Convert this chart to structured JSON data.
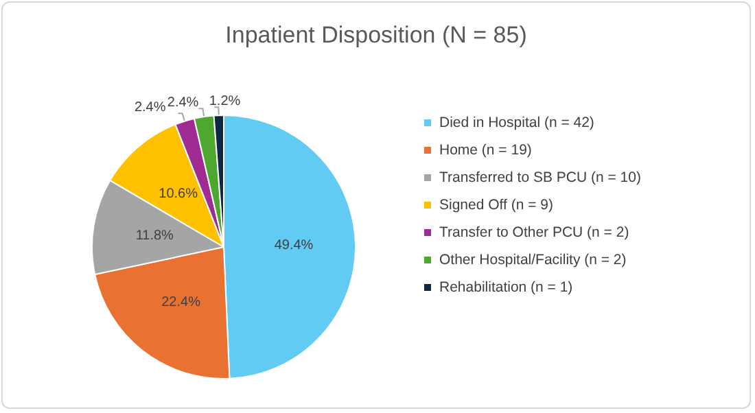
{
  "chart_data": {
    "type": "pie",
    "title": "Inpatient Disposition (N = 85)",
    "categories": [
      "Died in Hospital (n = 42)",
      "Home (n = 19)",
      "Transferred to SB PCU (n = 10)",
      "Signed Off (n = 9)",
      "Transfer to Other PCU (n = 2)",
      "Other Hospital/Facility (n = 2)",
      "Rehabilitation (n = 1)"
    ],
    "values": [
      49.4,
      22.4,
      11.8,
      10.6,
      2.4,
      2.4,
      1.2
    ],
    "value_labels": [
      "49.4%",
      "22.4%",
      "11.8%",
      "10.6%",
      "2.4%",
      "2.4%",
      "1.2%"
    ],
    "colors": [
      "#61cbf3",
      "#e97132",
      "#a5a5a5",
      "#ffc000",
      "#a02b93",
      "#4ea72e",
      "#0e2841"
    ],
    "legend": "right"
  }
}
